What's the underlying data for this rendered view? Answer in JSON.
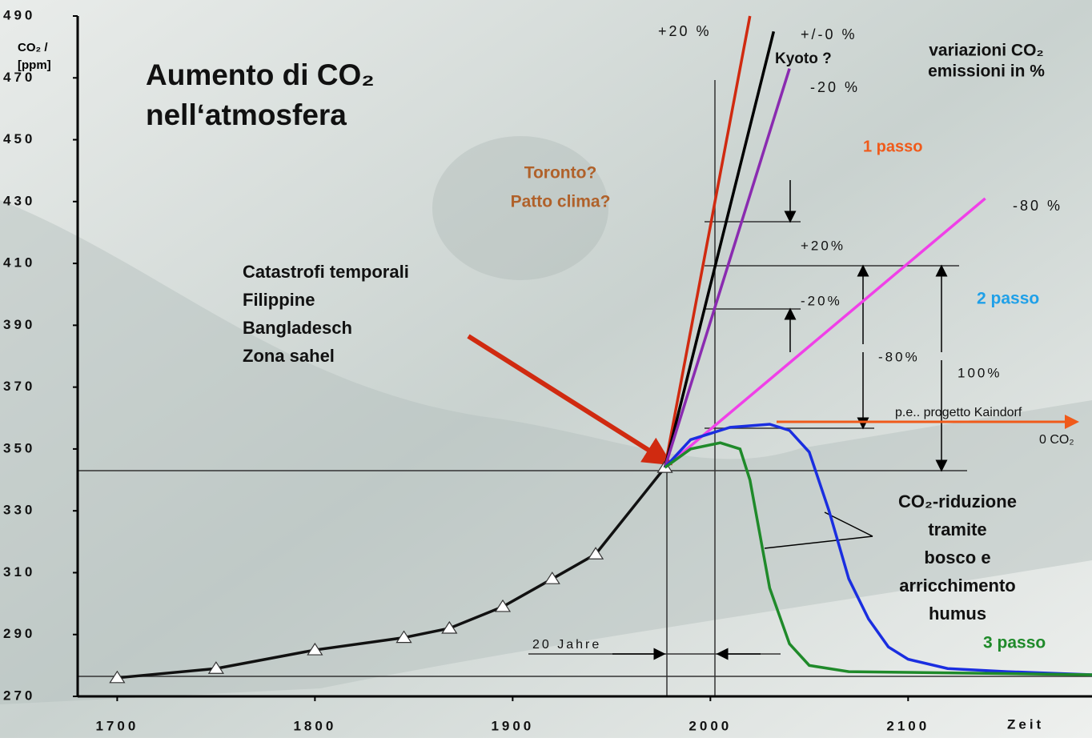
{
  "chart_data": {
    "type": "line",
    "title": [
      "Aumento di CO₂",
      "nell‘atmosfera"
    ],
    "y_label": [
      "CO₂ /",
      "[ppm]"
    ],
    "x_label": "Zeit",
    "xlim": [
      1680,
      2193
    ],
    "ylim": [
      270,
      490
    ],
    "xticks": [
      1700,
      1800,
      1900,
      2000,
      2100
    ],
    "yticks": [
      270,
      290,
      310,
      330,
      350,
      370,
      390,
      410,
      430,
      450,
      470,
      490
    ],
    "series": [
      {
        "color": "#111111",
        "marker": "triangle",
        "x": [
          1700,
          1750,
          1800,
          1845,
          1868,
          1895,
          1920,
          1942,
          1977
        ],
        "values": [
          276,
          279,
          285,
          289,
          292,
          299,
          308,
          316,
          344
        ]
      },
      {
        "name": "+20 %",
        "color": "#d02a10",
        "x": [
          1977,
          2020
        ],
        "values": [
          344,
          490
        ]
      },
      {
        "name": "+/-0 %",
        "color": "#000000",
        "x": [
          1977,
          2032
        ],
        "values": [
          344,
          485
        ]
      },
      {
        "name": "-20 %",
        "color": "#8a2bb0",
        "x": [
          1977,
          2040
        ],
        "values": [
          344,
          473
        ]
      },
      {
        "name": "-80 %",
        "color": "#f040e8",
        "x": [
          1977,
          2139
        ],
        "values": [
          344,
          431
        ]
      },
      {
        "color": "#1a2ee0",
        "x": [
          1977,
          1990,
          2010,
          2030,
          2040,
          2050,
          2060,
          2070,
          2080,
          2090,
          2100,
          2120,
          2150,
          2193
        ],
        "values": [
          344,
          353,
          357,
          358,
          356,
          349,
          330,
          308,
          295,
          286,
          282,
          279,
          278,
          277
        ]
      },
      {
        "color": "#1f8a2a",
        "x": [
          1977,
          1990,
          2005,
          2015,
          2020,
          2030,
          2040,
          2050,
          2070,
          2193
        ],
        "values": [
          344,
          350,
          352,
          350,
          340,
          305,
          287,
          280,
          278,
          277
        ]
      }
    ],
    "annotations": [
      [
        "Kyoto ?"
      ],
      [
        "variazioni CO₂",
        "emissioni  in %"
      ],
      [
        "1 passo"
      ],
      [
        "Toronto?",
        "Patto clima?"
      ],
      [
        "+20%"
      ],
      [
        "-20%"
      ],
      [
        "-80%"
      ],
      [
        "100%"
      ],
      [
        "2 passo"
      ],
      [
        "Catastrofi temporali",
        "Filippine",
        "Bangladesch",
        "Zona sahel"
      ],
      [
        "p.e.. progetto Kaindorf"
      ],
      [
        "0 CO₂"
      ],
      [
        "CO₂-riduzione",
        "tramite",
        "bosco e",
        "arricchimento",
        "humus"
      ],
      [
        "3 passo"
      ],
      [
        "20 Jahre"
      ]
    ]
  }
}
